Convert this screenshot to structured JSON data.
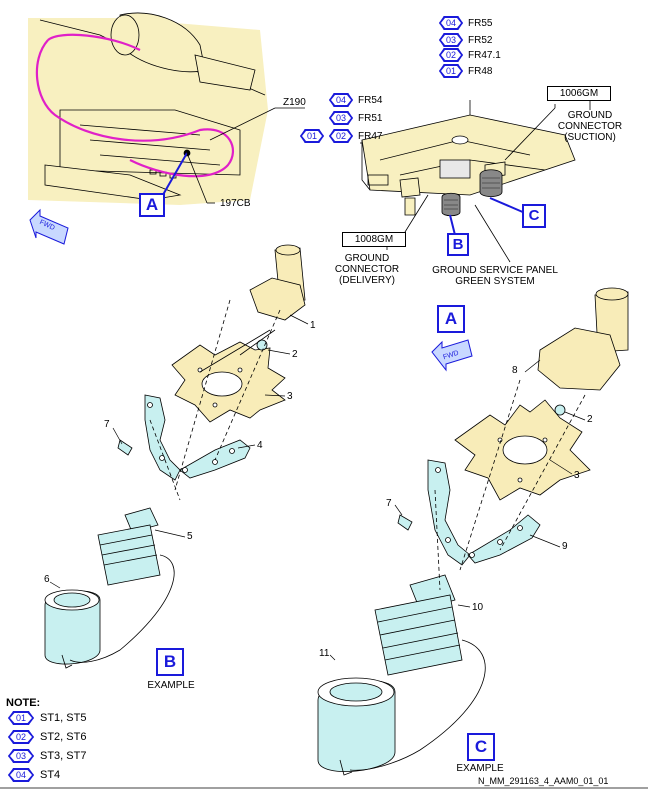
{
  "detail_labels": {
    "a_top": "A",
    "b_callout": "B",
    "c_callout": "C",
    "a_main": "A",
    "b_view": "B",
    "c_view": "C"
  },
  "frames": {
    "z190": "Z190",
    "access_197cb": "197CB"
  },
  "panel_effectivity": [
    {
      "code": "04",
      "label": "FR55"
    },
    {
      "code": "03",
      "label": "FR52"
    },
    {
      "code": "02",
      "label": "FR47.1"
    },
    {
      "code": "01",
      "label": "FR48"
    }
  ],
  "mid_effectivity": [
    {
      "codes": [
        "04"
      ],
      "label": "FR54"
    },
    {
      "codes": [
        "03"
      ],
      "label": "FR51"
    },
    {
      "codes": [
        "01",
        "02"
      ],
      "label": "FR47"
    }
  ],
  "ground_connectors": {
    "suction_id": "1006GM",
    "suction_label_1": "GROUND",
    "suction_label_2": "CONNECTOR",
    "suction_label_3": "(SUCTION)",
    "delivery_id": "1008GM",
    "delivery_label_1": "GROUND",
    "delivery_label_2": "CONNECTOR",
    "delivery_label_3": "(DELIVERY)"
  },
  "panel_title_1": "GROUND SERVICE PANEL",
  "panel_title_2": "GREEN SYSTEM",
  "fwd": "FWD",
  "items_b": {
    "n1": "1",
    "n2": "2",
    "n3": "3",
    "n4": "4",
    "n5": "5",
    "n6": "6",
    "n7": "7"
  },
  "items_c": {
    "n8": "8",
    "n2": "2",
    "n3": "3",
    "n7": "7",
    "n9": "9",
    "n10": "10",
    "n11": "11"
  },
  "example_b": "EXAMPLE",
  "example_c": "EXAMPLE",
  "note": {
    "title": "NOTE:",
    "rows": [
      {
        "code": "01",
        "text": "ST1, ST5"
      },
      {
        "code": "02",
        "text": "ST2, ST6"
      },
      {
        "code": "03",
        "text": "ST3, ST7"
      },
      {
        "code": "04",
        "text": "ST4"
      }
    ]
  },
  "footer": "N_MM_291163_4_AAM0_01_01",
  "colors": {
    "accent": "#1a1adb",
    "pink": "#e020c8",
    "parchment": "#f8f0c0",
    "part_cyan": "#c8f0f0",
    "gasket": "#f8ecb8"
  }
}
